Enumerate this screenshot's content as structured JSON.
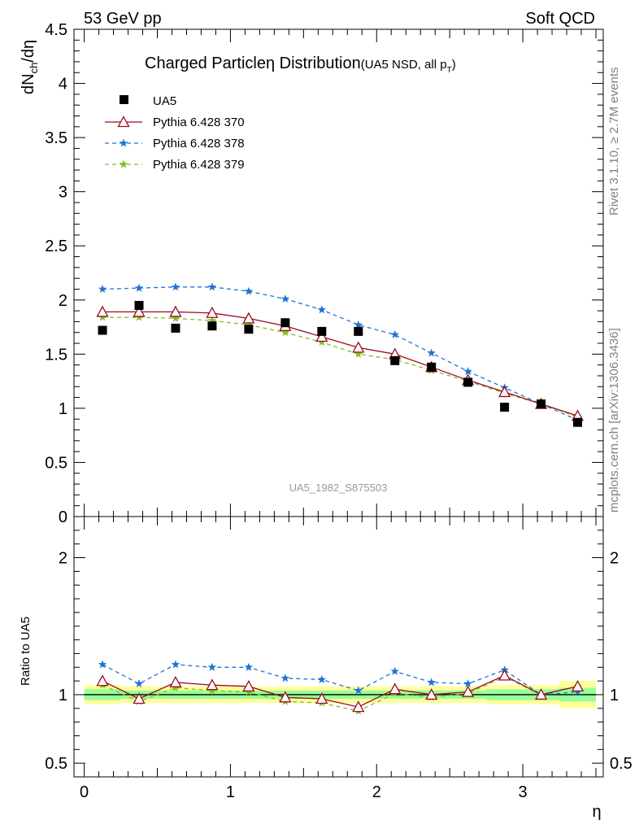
{
  "header": {
    "left": "53 GeV pp",
    "right": "Soft QCD"
  },
  "side_labels": {
    "rivet": "Rivet 3.1.10, ≥ 2.7M events",
    "mcplots": "mcplots.cern.ch [arXiv:1306.3436]"
  },
  "analysis_id": "UA5_1982_S875503",
  "chart_data": [
    {
      "type": "scatter",
      "title_main": "Charged Particle",
      "title_symbol": "η",
      "title_rest": " Distribution",
      "title_sub_prefix": "(UA5 NSD, all p",
      "title_sub_index": "T",
      "title_sub_suffix": ")",
      "ylabel_parts": {
        "a": "dN",
        "sub": "ch",
        "b": "/dη"
      },
      "ylim": [
        0,
        4.5
      ],
      "xlim": [
        -0.07,
        3.55
      ],
      "y_ticks": [
        "0",
        "0.5",
        "1",
        "1.5",
        "2",
        "2.5",
        "3",
        "3.5",
        "4",
        "4.5"
      ],
      "grid": false,
      "legend_position": "top-left",
      "x": [
        0.125,
        0.375,
        0.625,
        0.875,
        1.125,
        1.375,
        1.625,
        1.875,
        2.125,
        2.375,
        2.625,
        2.875,
        3.125,
        3.375
      ],
      "series": [
        {
          "name": "UA5",
          "color": "#000000",
          "marker": "square",
          "values": [
            1.72,
            1.95,
            1.74,
            1.76,
            1.73,
            1.79,
            1.71,
            1.71,
            1.44,
            1.38,
            1.24,
            1.01,
            1.04,
            0.87
          ]
        },
        {
          "name": "Pythia 6.428 370",
          "color": "#9b0a1e",
          "marker": "triangle-open",
          "line": "solid",
          "values": [
            1.89,
            1.89,
            1.89,
            1.88,
            1.83,
            1.76,
            1.66,
            1.56,
            1.5,
            1.38,
            1.26,
            1.15,
            1.04,
            0.93
          ]
        },
        {
          "name": "Pythia 6.428 378",
          "color": "#1f73d6",
          "marker": "star",
          "line": "dashed",
          "values": [
            2.1,
            2.11,
            2.12,
            2.12,
            2.08,
            2.01,
            1.91,
            1.77,
            1.68,
            1.51,
            1.34,
            1.19,
            1.04,
            0.89
          ]
        },
        {
          "name": "Pythia 6.428 379",
          "color": "#7fbf1f",
          "marker": "star",
          "line": "dashed",
          "values": [
            1.84,
            1.84,
            1.83,
            1.81,
            1.77,
            1.7,
            1.61,
            1.5,
            1.45,
            1.35,
            1.25,
            1.14,
            1.04,
            0.92
          ]
        }
      ]
    },
    {
      "type": "line",
      "ylabel": "Ratio to UA5",
      "xlabel": "η",
      "ylim": [
        0.4,
        2.3
      ],
      "xlim": [
        -0.07,
        3.55
      ],
      "x_ticks": [
        "0",
        "1",
        "2",
        "3"
      ],
      "y_ticks": [
        "0.5",
        "1",
        "2"
      ],
      "grid": false,
      "reference_line": 1.0,
      "band_inner_color": "#99ff99",
      "band_outer_color": "#ffff99",
      "x": [
        0.125,
        0.375,
        0.625,
        0.875,
        1.125,
        1.375,
        1.625,
        1.875,
        2.125,
        2.375,
        2.625,
        2.875,
        3.125,
        3.375
      ],
      "band_inner": [
        0.04,
        0.03,
        0.03,
        0.03,
        0.03,
        0.03,
        0.03,
        0.03,
        0.03,
        0.03,
        0.03,
        0.04,
        0.04,
        0.05
      ],
      "band_outer": [
        0.07,
        0.06,
        0.06,
        0.06,
        0.06,
        0.06,
        0.06,
        0.06,
        0.06,
        0.06,
        0.06,
        0.07,
        0.07,
        0.1
      ],
      "series": [
        {
          "name": "Pythia 6.428 370",
          "color": "#9b0a1e",
          "marker": "triangle-open",
          "line": "solid",
          "values": [
            1.1,
            0.97,
            1.09,
            1.07,
            1.06,
            0.98,
            0.97,
            0.91,
            1.04,
            1.0,
            1.02,
            1.14,
            1.0,
            1.06
          ]
        },
        {
          "name": "Pythia 6.428 378",
          "color": "#1f73d6",
          "marker": "star",
          "line": "dashed",
          "values": [
            1.22,
            1.08,
            1.22,
            1.2,
            1.2,
            1.12,
            1.11,
            1.03,
            1.17,
            1.09,
            1.08,
            1.18,
            1.0,
            1.02
          ]
        },
        {
          "name": "Pythia 6.428 379",
          "color": "#7fbf1f",
          "marker": "star",
          "line": "dashed",
          "values": [
            1.07,
            0.95,
            1.05,
            1.03,
            1.02,
            0.95,
            0.94,
            0.88,
            1.01,
            0.98,
            1.01,
            1.13,
            1.0,
            1.06
          ]
        }
      ]
    }
  ]
}
